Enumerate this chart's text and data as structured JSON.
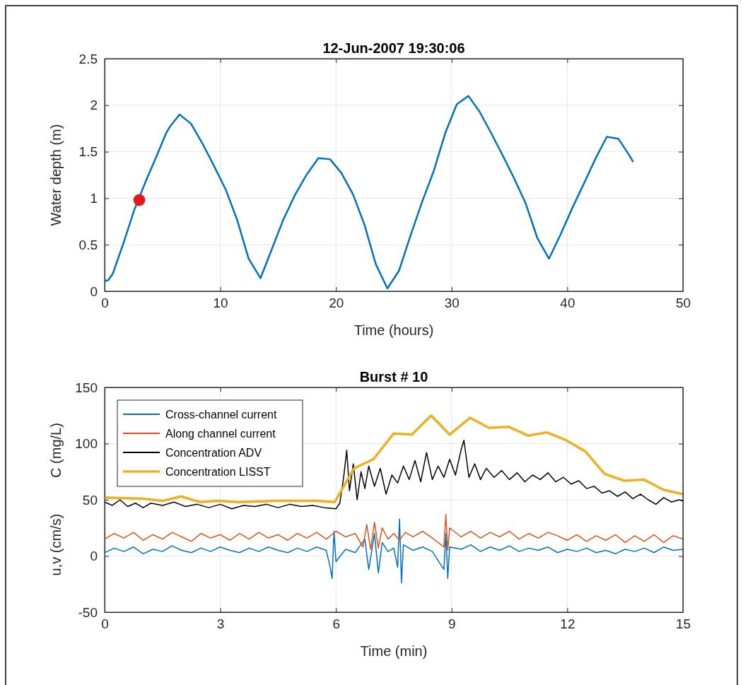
{
  "chart_data": [
    {
      "type": "line",
      "title": "12-Jun-2007 19:30:06",
      "xlabel": "Time (hours)",
      "ylabel": "Water depth (m)",
      "xlim": [
        0,
        50
      ],
      "xticks": [
        0,
        10,
        20,
        30,
        40,
        50
      ],
      "ylim": [
        0,
        2.5
      ],
      "yticks": [
        0,
        0.5,
        1,
        1.5,
        2,
        2.5
      ],
      "grid": true,
      "legend": false,
      "series": [
        {
          "color": "#0072bd",
          "x": [
            0,
            0.32,
            0.71,
            1.61,
            2.58,
            3.55,
            4.52,
            5.32,
            5.65,
            6.48,
            7.48,
            8.45,
            9.45,
            10.48,
            11.45,
            12.45,
            13.48,
            14.45,
            15.45,
            16.48,
            17.45,
            18.48,
            19.48,
            20.48,
            21.48,
            22.48,
            23.45,
            24.45,
            25.45,
            26.45,
            27.45,
            28.45,
            29.45,
            30.45,
            31.45,
            32.42,
            33.42,
            34.42,
            35.42,
            36.42,
            37.42,
            38.42,
            39.42,
            40.42,
            41.45,
            42.42,
            43.42,
            44.42,
            45.42,
            45.7
          ],
          "values": [
            0.11,
            0.12,
            0.19,
            0.51,
            0.88,
            1.18,
            1.46,
            1.7,
            1.77,
            1.9,
            1.8,
            1.59,
            1.35,
            1.09,
            0.77,
            0.35,
            0.14,
            0.45,
            0.77,
            1.04,
            1.25,
            1.43,
            1.42,
            1.27,
            1.04,
            0.71,
            0.29,
            0.03,
            0.22,
            0.6,
            0.96,
            1.29,
            1.7,
            2.01,
            2.1,
            1.93,
            1.7,
            1.46,
            1.21,
            0.94,
            0.57,
            0.35,
            0.61,
            0.89,
            1.16,
            1.42,
            1.66,
            1.64,
            1.45,
            1.39
          ]
        },
        {
          "type": "scatter",
          "color": "#e41a1c",
          "marker": "circle",
          "x": [
            3.0
          ],
          "values": [
            0.98
          ]
        }
      ]
    },
    {
      "type": "line",
      "title": "Burst # 10",
      "xlabel": "Time (min)",
      "ylabel": "C (mg/L)",
      "annotations": [
        "u,v (cm/s)"
      ],
      "xlim": [
        0,
        15
      ],
      "xticks": [
        0,
        3,
        6,
        9,
        12,
        15
      ],
      "ylim": [
        -50,
        150
      ],
      "yticks": [
        -50,
        0,
        50,
        100,
        150
      ],
      "grid": true,
      "legend": "top left",
      "series": [
        {
          "name": "Cross-channel current",
          "color": "#0072bd",
          "x": [
            0,
            0.25,
            0.5,
            0.75,
            1,
            1.25,
            1.5,
            1.75,
            2,
            2.25,
            2.5,
            2.75,
            3,
            3.25,
            3.5,
            3.75,
            4,
            4.25,
            4.5,
            4.75,
            5,
            5.25,
            5.5,
            5.75,
            5.85,
            5.9,
            5.95,
            6.0,
            6.25,
            6.5,
            6.75,
            6.85,
            7.0,
            7.1,
            7.2,
            7.35,
            7.5,
            7.6,
            7.65,
            7.7,
            7.75,
            8.0,
            8.25,
            8.5,
            8.8,
            8.85,
            8.9,
            8.95,
            9.25,
            9.5,
            9.75,
            10,
            10.25,
            10.5,
            10.75,
            11,
            11.25,
            11.5,
            11.75,
            12,
            12.25,
            12.5,
            12.75,
            13,
            13.25,
            13.5,
            13.75,
            14,
            14.25,
            14.5,
            14.75,
            15
          ],
          "values": [
            3,
            7,
            4,
            8,
            2,
            6,
            4,
            9,
            5,
            3,
            7,
            4,
            8,
            5,
            3,
            7,
            4,
            8,
            5,
            3,
            7,
            4,
            8,
            5,
            -10,
            -20,
            22,
            -5,
            6,
            3,
            15,
            -12,
            20,
            -15,
            12,
            4,
            7,
            -10,
            33,
            -24,
            10,
            5,
            8,
            4,
            -12,
            20,
            -20,
            8,
            6,
            10,
            4,
            8,
            5,
            9,
            4,
            7,
            5,
            8,
            3,
            6,
            4,
            7,
            3,
            5,
            2,
            6,
            4,
            7,
            3,
            8,
            5,
            6
          ]
        },
        {
          "name": "Along channel current",
          "color": "#d95319",
          "x": [
            0,
            0.25,
            0.5,
            0.75,
            1,
            1.25,
            1.5,
            1.75,
            2,
            2.25,
            2.5,
            2.75,
            3,
            3.25,
            3.5,
            3.75,
            4,
            4.25,
            4.5,
            4.75,
            5,
            5.25,
            5.5,
            5.75,
            6,
            6.25,
            6.5,
            6.7,
            6.8,
            6.9,
            7.0,
            7.1,
            7.2,
            7.35,
            7.5,
            7.65,
            7.8,
            8,
            8.25,
            8.5,
            8.8,
            8.85,
            8.9,
            8.95,
            9.25,
            9.5,
            9.75,
            10,
            10.25,
            10.5,
            10.75,
            11,
            11.25,
            11.5,
            11.75,
            12,
            12.25,
            12.5,
            12.75,
            13,
            13.25,
            13.5,
            13.75,
            14,
            14.25,
            14.5,
            14.75,
            15
          ],
          "values": [
            15,
            20,
            16,
            21,
            14,
            19,
            15,
            21,
            17,
            13,
            20,
            16,
            19,
            14,
            20,
            15,
            21,
            16,
            19,
            14,
            20,
            16,
            21,
            15,
            22,
            17,
            20,
            8,
            28,
            6,
            30,
            7,
            25,
            15,
            20,
            14,
            21,
            17,
            22,
            16,
            8,
            37,
            5,
            25,
            17,
            22,
            16,
            21,
            17,
            22,
            15,
            20,
            16,
            21,
            18,
            14,
            19,
            13,
            18,
            14,
            19,
            12,
            18,
            13,
            19,
            12,
            18,
            15
          ]
        },
        {
          "name": "Concentration ADV",
          "color": "#000000",
          "x": [
            0,
            0.2,
            0.4,
            0.6,
            0.8,
            1,
            1.2,
            1.5,
            1.8,
            2.1,
            2.4,
            2.7,
            3,
            3.3,
            3.6,
            3.9,
            4.2,
            4.5,
            4.8,
            5.1,
            5.4,
            5.7,
            6,
            6.1,
            6.2,
            6.28,
            6.35,
            6.45,
            6.55,
            6.65,
            6.75,
            6.85,
            7.0,
            7.15,
            7.3,
            7.45,
            7.6,
            7.75,
            7.9,
            8.05,
            8.2,
            8.35,
            8.5,
            8.65,
            8.8,
            8.95,
            9.1,
            9.25,
            9.32,
            9.45,
            9.6,
            9.75,
            9.9,
            10.1,
            10.3,
            10.5,
            10.7,
            10.9,
            11.1,
            11.3,
            11.5,
            11.7,
            11.9,
            12.1,
            12.3,
            12.5,
            12.7,
            12.9,
            13.1,
            13.3,
            13.5,
            13.7,
            13.9,
            14.1,
            14.3,
            14.5,
            14.7,
            14.9,
            15
          ],
          "values": [
            48,
            45,
            50,
            44,
            47,
            43,
            47,
            45,
            48,
            44,
            46,
            43,
            46,
            42,
            45,
            44,
            46,
            43,
            46,
            44,
            45,
            43,
            42,
            47,
            70,
            94,
            58,
            82,
            50,
            75,
            60,
            80,
            62,
            78,
            55,
            72,
            65,
            80,
            68,
            85,
            66,
            92,
            68,
            80,
            70,
            86,
            72,
            95,
            103,
            70,
            82,
            68,
            78,
            70,
            76,
            68,
            74,
            66,
            72,
            68,
            74,
            66,
            70,
            64,
            67,
            60,
            62,
            56,
            58,
            53,
            57,
            51,
            55,
            50,
            46,
            52,
            48,
            50,
            49
          ]
        },
        {
          "name": "Concentration LISST",
          "color": "#edb120",
          "x": [
            0,
            1.02,
            1.5,
            1.99,
            2.47,
            2.95,
            3.48,
            4.5,
            5.47,
            5.97,
            6.47,
            6.97,
            7.5,
            7.97,
            8.47,
            8.95,
            9.48,
            9.97,
            10.48,
            10.99,
            11.47,
            11.97,
            12.47,
            12.97,
            13.48,
            13.99,
            14.49,
            15
          ],
          "values": [
            52,
            51,
            49,
            53,
            48,
            49,
            48,
            49,
            49,
            48,
            78,
            86,
            109,
            108,
            125,
            108,
            123,
            114,
            115,
            107,
            110,
            103,
            93,
            73,
            67,
            68,
            59,
            55
          ]
        }
      ]
    }
  ]
}
